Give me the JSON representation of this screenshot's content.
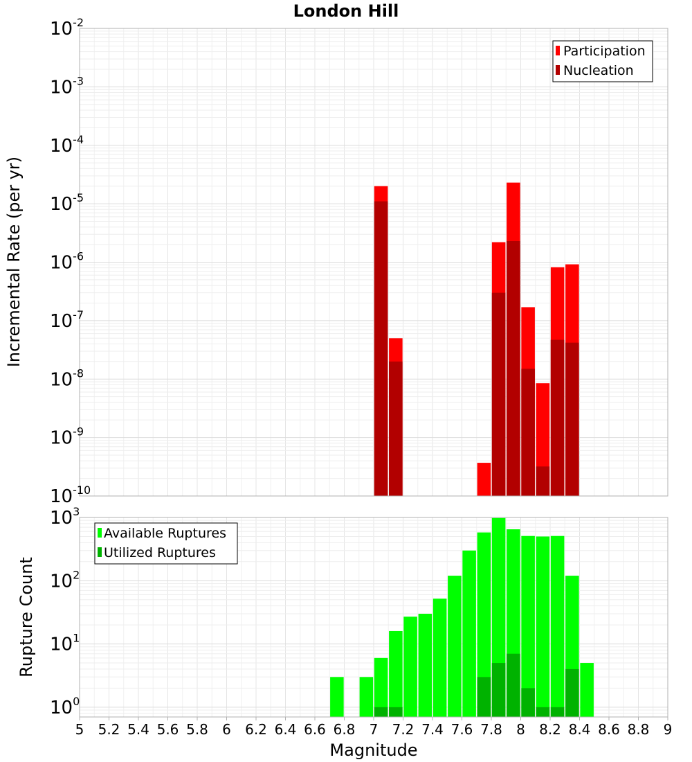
{
  "chart_data": [
    {
      "type": "bar",
      "title": "London Hill",
      "xlabel": "",
      "ylabel": "Incremental Rate (per yr)",
      "yscale": "log",
      "ylim": [
        1e-10,
        0.01
      ],
      "xlim": [
        5,
        9
      ],
      "grid": true,
      "legend_position": "top-right",
      "y_ticks": [
        "10^-2",
        "10^-3",
        "10^-4",
        "10^-5",
        "10^-6",
        "10^-7",
        "10^-8",
        "10^-9",
        "10^-10"
      ],
      "series": [
        {
          "name": "Participation",
          "color": "#ff0000",
          "x": [
            7.05,
            7.15,
            7.75,
            7.85,
            7.95,
            8.05,
            8.15,
            8.25,
            8.35
          ],
          "values": [
            2e-05,
            5e-08,
            3.7e-10,
            2.2e-06,
            2.3e-05,
            1.7e-07,
            8.5e-09,
            8.2e-07,
            9.2e-07
          ]
        },
        {
          "name": "Nucleation",
          "color": "#b20000",
          "x": [
            7.05,
            7.15,
            7.85,
            7.95,
            8.05,
            8.15,
            8.25,
            8.35
          ],
          "values": [
            1.1e-05,
            2e-08,
            3e-07,
            2.3e-06,
            1.5e-08,
            3.2e-10,
            4.7e-08,
            4.2e-08
          ]
        }
      ]
    },
    {
      "type": "bar",
      "title": "",
      "xlabel": "Magnitude",
      "ylabel": "Rupture Count",
      "yscale": "log",
      "ylim": [
        0.7,
        1000
      ],
      "xlim": [
        5,
        9
      ],
      "grid": true,
      "legend_position": "top-left",
      "y_ticks": [
        "10^3",
        "10^2",
        "10^1",
        "10^0"
      ],
      "x_ticks": [
        "5",
        "5.2",
        "5.4",
        "5.6",
        "5.8",
        "6",
        "6.2",
        "6.4",
        "6.6",
        "6.8",
        "7",
        "7.2",
        "7.4",
        "7.6",
        "7.8",
        "8",
        "8.2",
        "8.4",
        "8.6",
        "8.8",
        "9"
      ],
      "series": [
        {
          "name": "Available Ruptures",
          "color": "#00ff00",
          "x": [
            6.75,
            6.95,
            7.05,
            7.15,
            7.25,
            7.35,
            7.45,
            7.55,
            7.65,
            7.75,
            7.85,
            7.95,
            8.05,
            8.15,
            8.25,
            8.35,
            8.45
          ],
          "values": [
            3,
            3,
            6,
            16,
            27,
            30,
            52,
            120,
            300,
            580,
            980,
            650,
            510,
            500,
            510,
            120,
            5
          ]
        },
        {
          "name": "Utilized Ruptures",
          "color": "#00b200",
          "x": [
            7.05,
            7.15,
            7.75,
            7.85,
            7.95,
            8.05,
            8.15,
            8.25,
            8.35
          ],
          "values": [
            1,
            1,
            3,
            5,
            7,
            2,
            1,
            1,
            4
          ]
        }
      ]
    }
  ]
}
